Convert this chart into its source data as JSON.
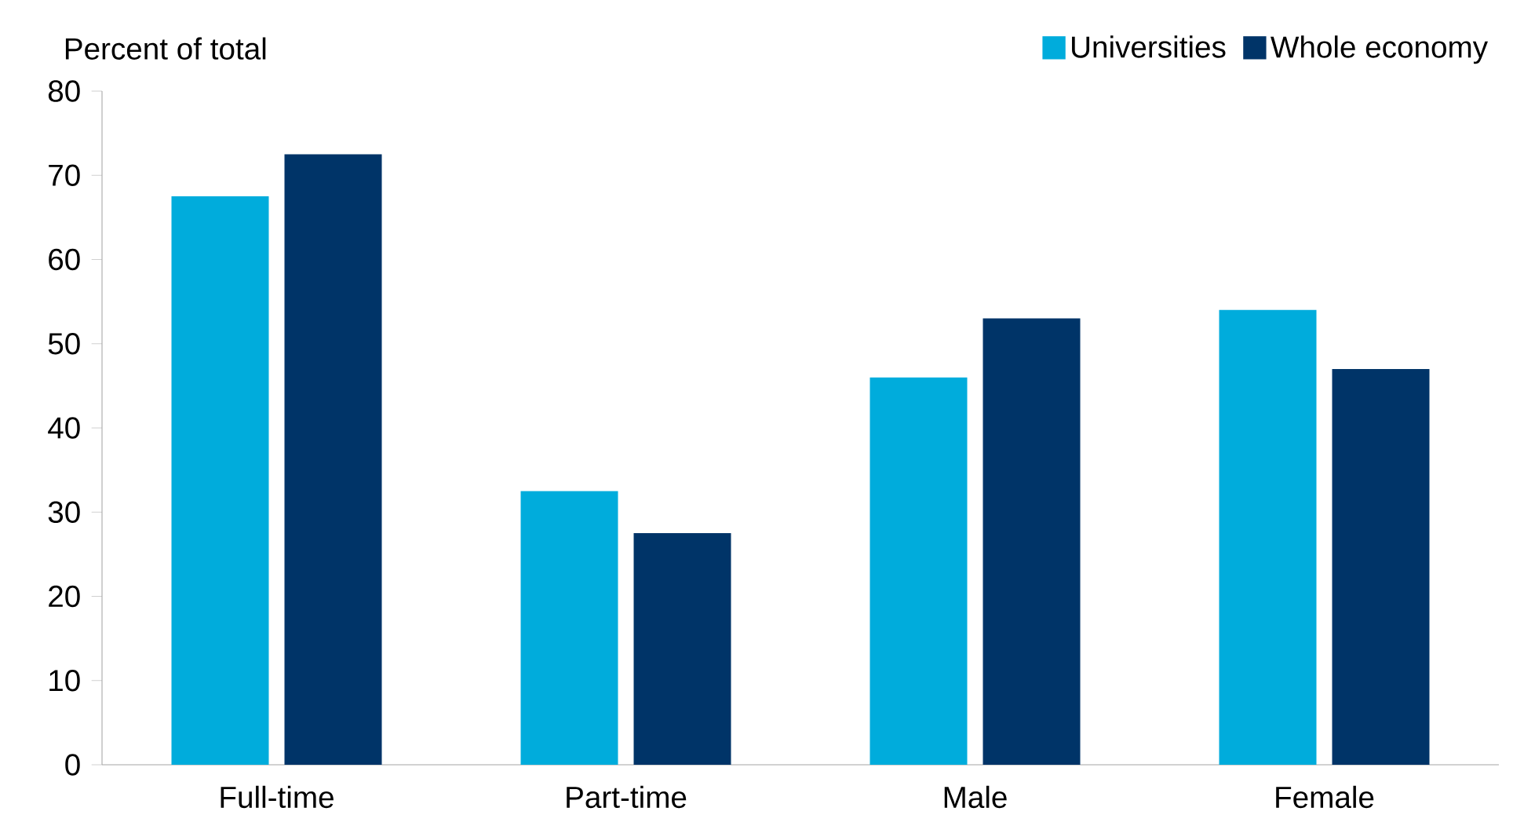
{
  "chart_data": {
    "type": "bar",
    "ylabel": "Percent of total",
    "categories": [
      "Full-time",
      "Part-time",
      "Male",
      "Female"
    ],
    "series": [
      {
        "name": "Universities",
        "color": "#00acdc",
        "values": [
          67.5,
          32.5,
          46,
          54
        ]
      },
      {
        "name": "Whole economy",
        "color": "#003468",
        "values": [
          72.5,
          27.5,
          53,
          47
        ]
      }
    ],
    "ylim": [
      0,
      80
    ],
    "yticks": [
      0,
      10,
      20,
      30,
      40,
      50,
      60,
      70,
      80
    ],
    "legend": "top right"
  }
}
